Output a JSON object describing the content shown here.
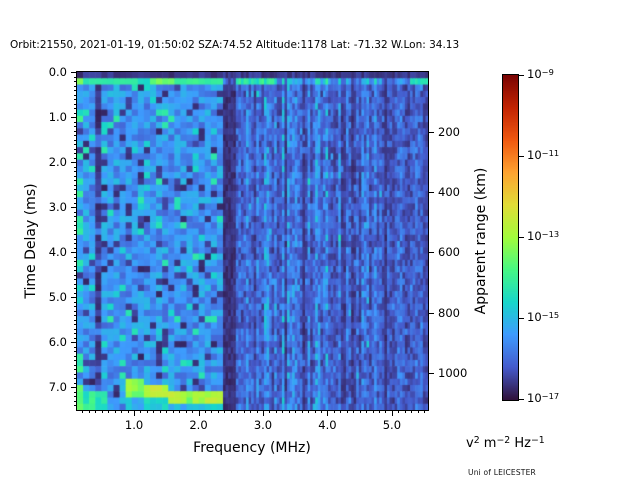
{
  "title": "Orbit:21550, 2021-01-19, 01:50:02 SZA:74.52 Altitude:1178 Lat: -71.32 W.Lon: 34.13",
  "credit": "Uni of LEICESTER",
  "chart_data": {
    "type": "heatmap",
    "title": "Orbit:21550, 2021-01-19, 01:50:02 SZA:74.52 Altitude:1178 Lat: -71.32 W.Lon: 34.13",
    "xlabel": "Frequency (MHz)",
    "ylabel_left": "Time Delay (ms)",
    "ylabel_right": "Apparent range (km)",
    "x_range_mhz": [
      0.115,
      5.56
    ],
    "y_range_ms": [
      0.0,
      7.5
    ],
    "x_ticks": [
      {
        "v": 1.0,
        "label": "1.0"
      },
      {
        "v": 2.0,
        "label": "2.0"
      },
      {
        "v": 3.0,
        "label": "3.0"
      },
      {
        "v": 4.0,
        "label": "4.0"
      },
      {
        "v": 5.0,
        "label": "5.0"
      }
    ],
    "x_minor_step_mhz": 0.1,
    "y_ticks": [
      {
        "v": 0.0,
        "label": "0.0"
      },
      {
        "v": 1.0,
        "label": "1.0"
      },
      {
        "v": 2.0,
        "label": "2.0"
      },
      {
        "v": 3.0,
        "label": "3.0"
      },
      {
        "v": 4.0,
        "label": "4.0"
      },
      {
        "v": 5.0,
        "label": "5.0"
      },
      {
        "v": 6.0,
        "label": "6.0"
      },
      {
        "v": 7.0,
        "label": "7.0"
      }
    ],
    "y_minor_step_ms": 0.1,
    "y2_ticks_km": [
      {
        "v": 200,
        "label": "200"
      },
      {
        "v": 400,
        "label": "400"
      },
      {
        "v": 600,
        "label": "600"
      },
      {
        "v": 800,
        "label": "800"
      },
      {
        "v": 1000,
        "label": "1000"
      }
    ],
    "km_per_ms": 149.9,
    "colorbar": {
      "scale": "log",
      "max_label_exp": "−9",
      "min_label_exp": "−17",
      "tick_exponents": [
        "−9",
        "−11",
        "−13",
        "−15",
        "−17"
      ],
      "unit_parts": [
        [
          "v",
          "2"
        ],
        [
          "m",
          "−2"
        ],
        [
          "Hz",
          "−1"
        ]
      ],
      "colormap": "turbo",
      "stops": [
        [
          0.0,
          "#30123b"
        ],
        [
          0.1,
          "#455bcd"
        ],
        [
          0.2,
          "#3e9bfe"
        ],
        [
          0.3,
          "#18d6cb"
        ],
        [
          0.4,
          "#46f884"
        ],
        [
          0.5,
          "#a2fc3c"
        ],
        [
          0.6,
          "#e1dd37"
        ],
        [
          0.7,
          "#fea331"
        ],
        [
          0.8,
          "#ef5911"
        ],
        [
          0.9,
          "#c22403"
        ],
        [
          1.0,
          "#7a0403"
        ]
      ]
    },
    "grid": {
      "rows": 54,
      "left_cols": 24,
      "right_cols": 80,
      "split_mhz": 2.38
    },
    "seed": 7,
    "features": {
      "top_dark_row_ms": [
        0.0,
        0.14
      ],
      "surface_echo_band_ms": [
        0.14,
        0.28
      ],
      "dark_band1_mhz": [
        0.36,
        0.53
      ],
      "dark_band2_mhz": [
        2.36,
        2.56
      ],
      "stripe_fadeout_start_mhz": 4.0,
      "ionosphere_echo_trace": {
        "f_mhz": [
          0.85,
          2.45
        ],
        "delay_start_ms": 7.02,
        "delay_step_ms": 0.22,
        "step_center_mhz": 1.5,
        "half_thickness_ms": 0.15,
        "bright_f1_mhz": [
          1.2,
          1.8
        ],
        "bright_f2_mhz": [
          1.95,
          2.35
        ]
      },
      "bottom_left_patch": {
        "f_mhz": [
          0.115,
          0.6
        ],
        "delay_ms": [
          7.1,
          7.5
        ]
      }
    }
  }
}
